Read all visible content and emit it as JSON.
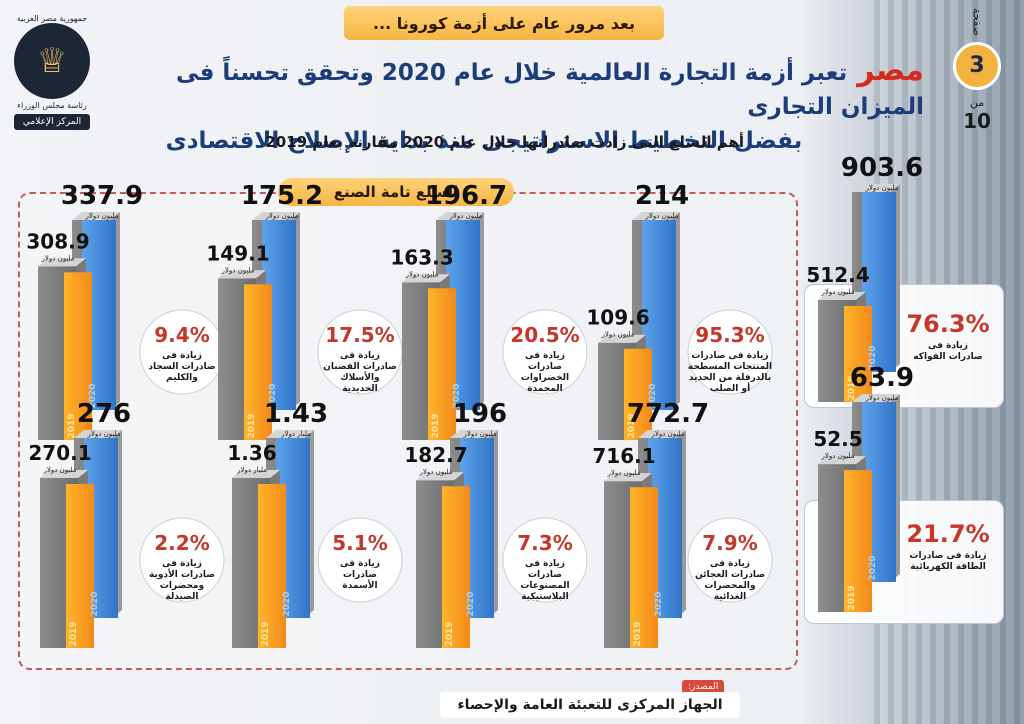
{
  "header": {
    "top_banner": "بعد مرور عام على أزمة كورونا ...",
    "logo_top_text": "جمهورية مصر العربية",
    "logo_mid_text": "رئاسة مجلس الوزراء",
    "logo_band_text": "المركز الإعلامي",
    "egypt_word": "مصر",
    "title_line1": "تعبر أزمة التجارة العالمية خلال عام 2020 وتحقق تحسناً فى الميزان التجارى",
    "title_line2": "بفضل التخطيط الاستراتيجى منذ بداية الإصلاح الاقتصادى",
    "subtitle": "أهم السلع التى زادت صادراتها خلال عام 2020 مقارنة بعام 2019"
  },
  "pager": {
    "label": "صفحة",
    "current": "3",
    "of_label": "من",
    "total": "10"
  },
  "panel": {
    "title": "السلع تامة الصنع"
  },
  "source": {
    "tag": "المصدر:",
    "name": "الجهاز المركزى للتعبئة العامة والإحصاء"
  },
  "colors": {
    "orange": "#f28a1b",
    "blue": "#2f74c8",
    "gray": "#6d6d6d",
    "red": "#c4372a"
  },
  "chart_data": {
    "type": "bar",
    "years": [
      "2019",
      "2020"
    ],
    "items": [
      {
        "v2019": "308.9",
        "v2020": "337.9",
        "unit2019": "مليون دولار",
        "unit2020": "مليون دولار",
        "pct": "9.4%",
        "desc": [
          "زيادة فى",
          "صادرات السجاد",
          "والكليم"
        ]
      },
      {
        "v2019": "149.1",
        "v2020": "175.2",
        "unit2019": "مليون دولار",
        "unit2020": "مليون دولار",
        "pct": "17.5%",
        "desc": [
          "زيادة فى",
          "صادرات القضبان",
          "والأسلاك",
          "الحديدية"
        ]
      },
      {
        "v2019": "163.3",
        "v2020": "196.7",
        "unit2019": "مليون دولار",
        "unit2020": "مليون دولار",
        "pct": "20.5%",
        "desc": [
          "زيادة فى",
          "صادرات",
          "الخضراوات",
          "المجمدة"
        ]
      },
      {
        "v2019": "109.6",
        "v2020": "214",
        "unit2019": "مليون دولار",
        "unit2020": "مليون دولار",
        "pct": "95.3%",
        "desc": [
          "زيادة فى صادرات",
          "المنتجات المسطحة",
          "بالدرفلة من الحديد",
          "أو الصلب"
        ]
      },
      {
        "v2019": "270.1",
        "v2020": "276",
        "unit2019": "مليون دولار",
        "unit2020": "مليون دولار",
        "pct": "2.2%",
        "desc": [
          "زيادة فى",
          "صادرات الأدوية",
          "ومحضرات",
          "الصيدلة"
        ]
      },
      {
        "v2019": "1.36",
        "v2020": "1.43",
        "unit2019": "مليار دولار",
        "unit2020": "مليار دولار",
        "pct": "5.1%",
        "desc": [
          "زيادة فى",
          "صادرات",
          "الأسمدة"
        ]
      },
      {
        "v2019": "182.7",
        "v2020": "196",
        "unit2019": "مليون دولار",
        "unit2020": "مليون دولار",
        "pct": "7.3%",
        "desc": [
          "زيادة فى",
          "صادرات",
          "المصنوعات",
          "البلاستيكية"
        ]
      },
      {
        "v2019": "716.1",
        "v2020": "772.7",
        "unit2019": "مليون دولار",
        "unit2020": "مليون دولار",
        "pct": "7.9%",
        "desc": [
          "زيادة فى",
          "صادرات العجائن",
          "والمحضرات",
          "الغذائية"
        ]
      },
      {
        "v2019": "512.4",
        "v2020": "903.6",
        "unit2019": "مليون دولار",
        "unit2020": "مليون دولار",
        "pct": "76.3%",
        "desc": [
          "زيادة فى",
          "صادرات الفواكه"
        ]
      },
      {
        "v2019": "52.5",
        "v2020": "63.9",
        "unit2019": "مليون دولار",
        "unit2020": "مليون دولار",
        "pct": "21.7%",
        "desc": [
          "زيادة فى صادرات",
          "الطاقة الكهربائية"
        ]
      }
    ]
  }
}
